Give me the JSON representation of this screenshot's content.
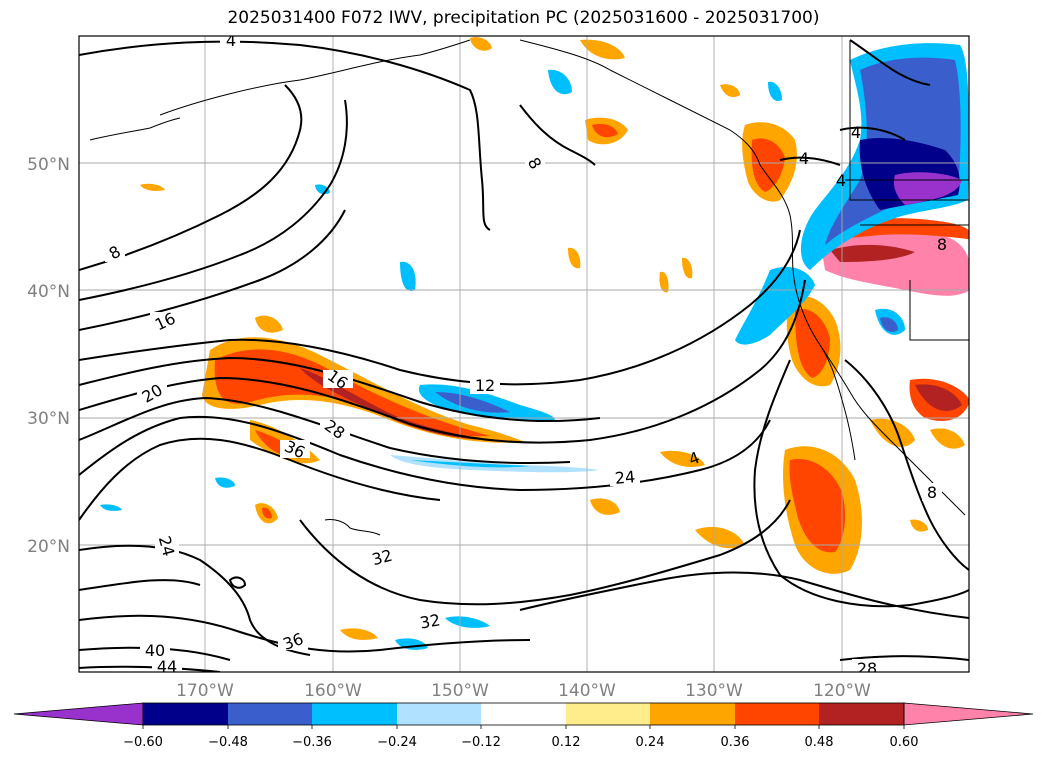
{
  "title": "2025031400 F072 IWV, precipitation PC (2025031600 - 2025031700)",
  "map": {
    "lon_range": [
      "180°",
      "110°W"
    ],
    "lat_range": [
      "10°N",
      "60°N"
    ],
    "lon_ticks": [
      "170°W",
      "160°W",
      "150°W",
      "140°W",
      "130°W",
      "120°W"
    ],
    "lat_ticks": [
      "20°N",
      "30°N",
      "40°N",
      "50°N"
    ],
    "gridlines": true,
    "contour_labels": [
      {
        "text": "4",
        "rot": 0
      },
      {
        "text": "8",
        "rot": -30
      },
      {
        "text": "8",
        "rot": 60
      },
      {
        "text": "16",
        "rot": -25
      },
      {
        "text": "20",
        "rot": -30
      },
      {
        "text": "16",
        "rot": 35
      },
      {
        "text": "28",
        "rot": 35
      },
      {
        "text": "36",
        "rot": 25
      },
      {
        "text": "12",
        "rot": 0
      },
      {
        "text": "24",
        "rot": -5
      },
      {
        "text": "24",
        "rot": 75
      },
      {
        "text": "32",
        "rot": -15
      },
      {
        "text": "32",
        "rot": -10
      },
      {
        "text": "36",
        "rot": -20
      },
      {
        "text": "40",
        "rot": 0
      },
      {
        "text": "44",
        "rot": 0
      },
      {
        "text": "28",
        "rot": 0
      },
      {
        "text": "4",
        "rot": 0
      },
      {
        "text": "4",
        "rot": 0
      },
      {
        "text": "4",
        "rot": 0
      },
      {
        "text": "4",
        "rot": -20
      },
      {
        "text": "8",
        "rot": 0
      },
      {
        "text": "8",
        "rot": 0
      }
    ]
  },
  "colorbar": {
    "ticks": [
      "−0.60",
      "−0.48",
      "−0.36",
      "−0.24",
      "−0.12",
      "0.12",
      "0.24",
      "0.36",
      "0.48",
      "0.60"
    ],
    "colors": [
      "#9932cc",
      "#00008b",
      "#3a5fcd",
      "#00bfff",
      "#b0e2ff",
      "#ffffff",
      "#ffec8b",
      "#ffa500",
      "#ff4500",
      "#b22222",
      "#ff82ab"
    ],
    "extend": "both"
  }
}
